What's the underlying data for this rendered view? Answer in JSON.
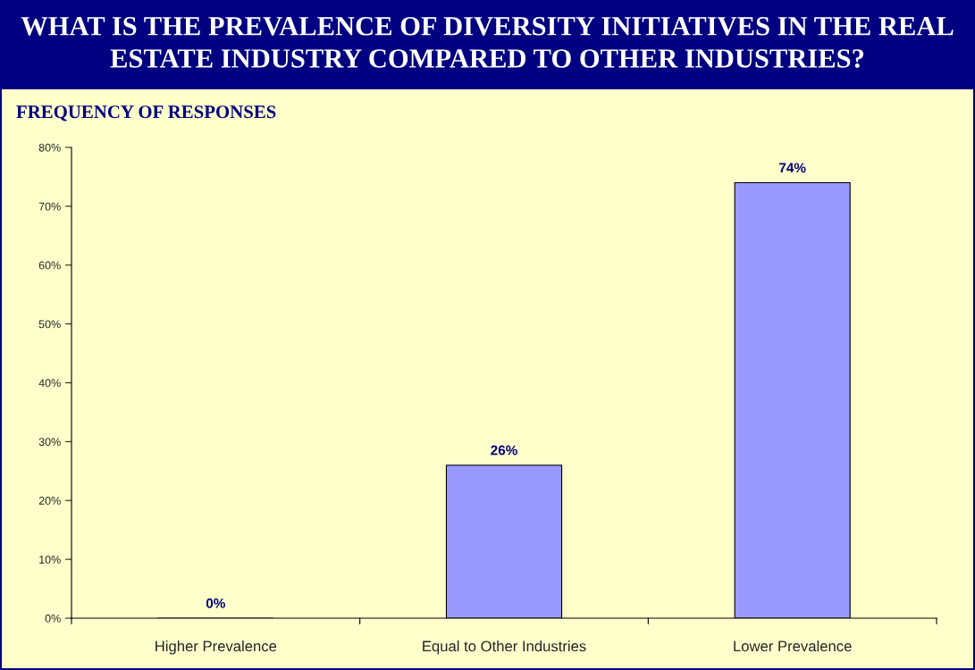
{
  "chart_data": {
    "type": "bar",
    "title": "WHAT IS THE PREVALENCE OF DIVERSITY INITIATIVES IN THE REAL ESTATE INDUSTRY COMPARED TO OTHER INDUSTRIES?",
    "subtitle": "FREQUENCY OF RESPONSES",
    "categories": [
      "Higher Prevalence",
      "Equal to Other Industries",
      "Lower Prevalence"
    ],
    "values": [
      0,
      26,
      74
    ],
    "color": "#9999ff",
    "value_labels": [
      "0%",
      "26%",
      "74%"
    ],
    "ylim": [
      0,
      80
    ],
    "yticks": [
      {
        "value": 0,
        "label": "0%"
      },
      {
        "value": 10,
        "label": "10%"
      },
      {
        "value": 20,
        "label": "20%"
      },
      {
        "value": 30,
        "label": "30%"
      },
      {
        "value": 40,
        "label": "40%"
      },
      {
        "value": 50,
        "label": "50%"
      },
      {
        "value": 60,
        "label": "60%"
      },
      {
        "value": 70,
        "label": "70%"
      },
      {
        "value": 80,
        "label": "80%"
      }
    ],
    "grid": false,
    "legend": false
  }
}
